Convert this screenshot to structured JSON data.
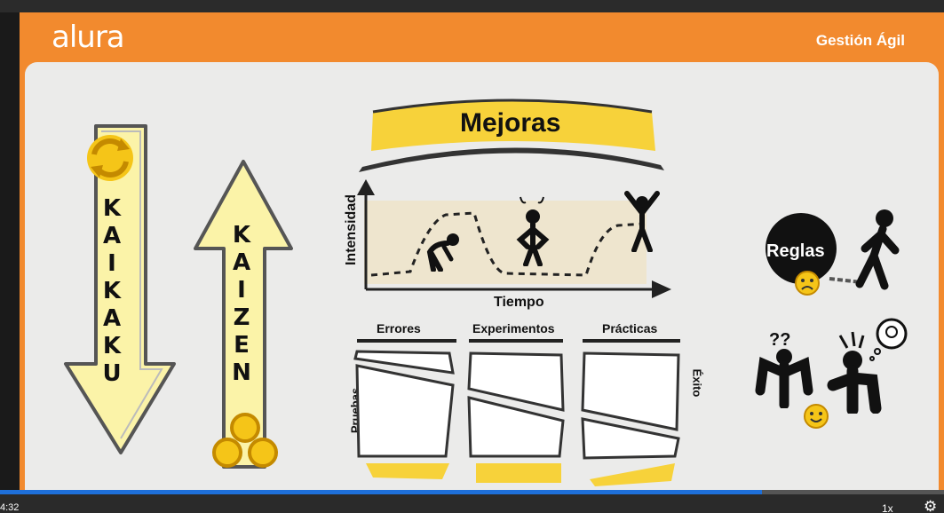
{
  "header": {
    "logo": "alura",
    "course_title": "Gestión Ágil"
  },
  "slide": {
    "kaikaku_letters": [
      "K",
      "A",
      "I",
      "K",
      "A",
      "K",
      "U"
    ],
    "kaizen_letters": [
      "K",
      "A",
      "I",
      "Z",
      "E",
      "N"
    ],
    "banner_title": "Mejoras",
    "chart": {
      "ylabel": "Intensidad",
      "xlabel": "Tiempo"
    },
    "columns": [
      "Errores",
      "Experimentos",
      "Prácticas"
    ],
    "left_label": "Pruebas",
    "right_label": "Éxito",
    "rules_label": "Reglas",
    "question_marks": "??"
  },
  "player": {
    "time": "4:32",
    "speed": "1x",
    "progress_fraction": 0.807
  },
  "colors": {
    "orange": "#f28a2e",
    "yellow": "#f7d23a",
    "pale_yellow": "#fbf3a8",
    "progress": "#1e6fd9"
  }
}
